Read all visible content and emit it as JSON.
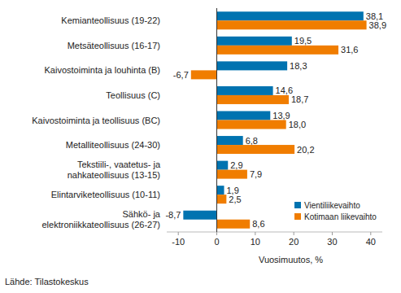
{
  "chart_data": {
    "type": "bar",
    "orientation": "horizontal",
    "categories": [
      "Kemianteollisuus (19-22)",
      "Metsäteollisuus (16-17)",
      "Kaivostoiminta ja louhinta (B)",
      "Teollisuus (C)",
      "Kaivostoiminta ja teollisuus (BC)",
      "Metalliteollisuus (24-30)",
      "Tekstiili-, vaatetus- ja\nnahkateollisuus (13-15)",
      "Elintarviketeollisuus (10-11)",
      "Sähkö- ja\nelektroniikkateollisuus (26-27)"
    ],
    "series": [
      {
        "name": "Vientiliikevaihto",
        "color": "#0073b0",
        "values": [
          38.1,
          19.5,
          18.3,
          14.6,
          13.9,
          6.8,
          2.9,
          1.9,
          -8.7
        ],
        "value_labels": [
          "38,1",
          "19,5",
          "18,3",
          "14,6",
          "13,9",
          "6,8",
          "2,9",
          "1,9",
          "-8,7"
        ]
      },
      {
        "name": "Kotimaan liikevaihto",
        "color": "#f07d00",
        "values": [
          38.9,
          31.6,
          -6.7,
          18.7,
          18.0,
          20.2,
          7.9,
          2.5,
          8.6
        ],
        "value_labels": [
          "38,9",
          "31,6",
          "-6,7",
          "18,7",
          "18,0",
          "20,2",
          "7,9",
          "2,5",
          "8,6"
        ]
      }
    ],
    "xlim": [
      -13,
      43
    ],
    "xticks": [
      -10,
      0,
      10,
      20,
      30,
      40
    ],
    "x_label": "Vuosimuutos, %",
    "source": "Lähde: Tilastokeskus",
    "data_labels": true,
    "grid": false,
    "legend": "lower right"
  }
}
